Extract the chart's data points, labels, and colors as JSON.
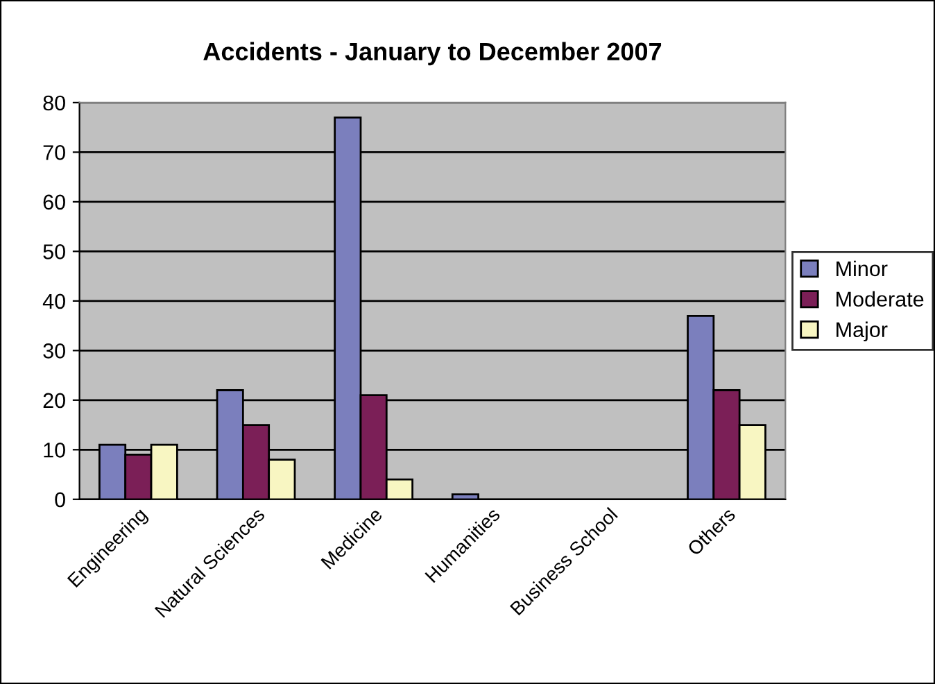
{
  "chart_data": {
    "type": "bar",
    "title": "Accidents - January to December 2007",
    "categories": [
      "Engineering",
      "Natural Sciences",
      "Medicine",
      "Humanities",
      "Business School",
      "Others"
    ],
    "series": [
      {
        "name": "Minor",
        "color": "#7b7fbd",
        "values": [
          11,
          22,
          77,
          1,
          0,
          37
        ]
      },
      {
        "name": "Moderate",
        "color": "#7b1f57",
        "values": [
          9,
          15,
          21,
          0,
          0,
          22
        ]
      },
      {
        "name": "Major",
        "color": "#f8f6c2",
        "values": [
          11,
          8,
          4,
          0,
          0,
          15
        ]
      }
    ],
    "ylim": [
      0,
      80
    ],
    "yticks": [
      0,
      10,
      20,
      30,
      40,
      50,
      60,
      70,
      80
    ],
    "grid": "y",
    "legend": "right"
  }
}
